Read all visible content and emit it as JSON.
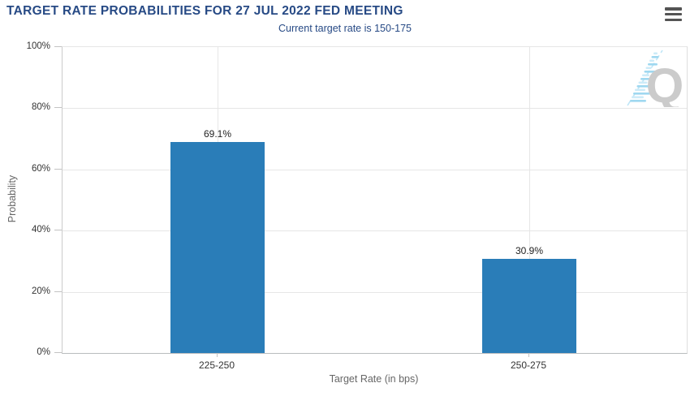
{
  "header": {
    "title": "TARGET RATE PROBABILITIES FOR 27 JUL 2022 FED MEETING",
    "subtitle": "Current target rate is 150-175"
  },
  "icons": {
    "menu": "hamburger-icon",
    "watermark": "quikstrike-q-logo"
  },
  "watermark": {
    "letter": "Q"
  },
  "colors": {
    "title_text": "#274a85",
    "subtitle_text": "#274a85",
    "bar_fill": "#2a7db8",
    "grid_line": "#e6e6e6",
    "axis_line": "#c3c3c3",
    "tick_text": "#333333",
    "axis_title_text": "#666666",
    "data_label_text": "#222222",
    "menu_icon": "#545454",
    "watermark_gray": "#cbcbcb",
    "watermark_blue": "#9fd8f0"
  },
  "chart_data": {
    "type": "bar",
    "title": "TARGET RATE PROBABILITIES FOR 27 JUL 2022 FED MEETING",
    "subtitle": "Current target rate is 150-175",
    "categories": [
      "225-250",
      "250-275"
    ],
    "values": [
      69.1,
      30.9
    ],
    "value_labels": [
      "69.1%",
      "30.9%"
    ],
    "series": [
      {
        "name": "Probability",
        "values": [
          69.1,
          30.9
        ]
      }
    ],
    "xlabel": "Target Rate (in bps)",
    "ylabel": "Probability",
    "ylim": [
      0,
      100
    ],
    "yticks_desc": [
      "100%",
      "80%",
      "60%",
      "40%",
      "20%",
      "0%"
    ],
    "grid": true,
    "legend": false
  }
}
